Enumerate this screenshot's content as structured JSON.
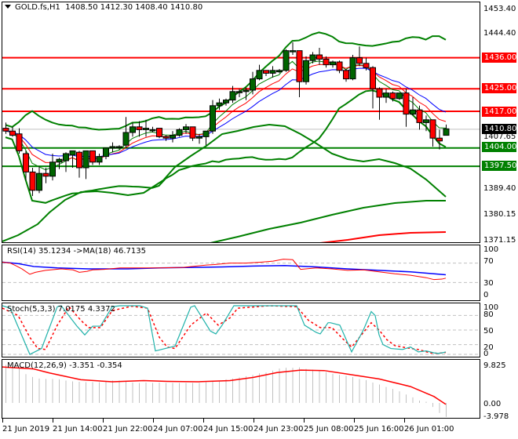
{
  "header": {
    "symbol": "GOLD.fs,H1",
    "ohlc": "1408.50 1412.30 1408.40 1410.80",
    "menu_icon": "triangle-down-icon"
  },
  "colors": {
    "bull": "#006400",
    "bear": "#ff0000",
    "bollinger": "#008000",
    "ma_fast": "#008000",
    "ma_mid": "#ff0000",
    "ma_slow": "#0000ff",
    "resistance": "#ff0000",
    "support": "#008000",
    "current_price_tag": "#000000",
    "stoch_main": "#20b2aa",
    "stoch_signal": "#ff0000",
    "rsi": "#ff0000",
    "rsi_ma": "#0000ff",
    "macd_hist": "#c0c0c0",
    "macd_signal": "#ff0000"
  },
  "price_axis": {
    "ticks": [
      "1453.40",
      "1444.40",
      "1407.65",
      "1389.40",
      "1380.15",
      "1371.15"
    ],
    "tags": [
      {
        "value": "1436.00",
        "color": "#ff0000"
      },
      {
        "value": "1425.00",
        "color": "#ff0000"
      },
      {
        "value": "1417.00",
        "color": "#ff0000"
      },
      {
        "value": "1410.80",
        "color": "#000000"
      },
      {
        "value": "1404.00",
        "color": "#008000"
      },
      {
        "value": "1397.50",
        "color": "#008000"
      }
    ]
  },
  "time_axis": {
    "ticks": [
      "21 Jun 2019",
      "21 Jun 14:00",
      "21 Jun 22:00",
      "24 Jun 07:00",
      "24 Jun 15:00",
      "24 Jun 23:00",
      "25 Jun 08:00",
      "25 Jun 16:00",
      "26 Jun 01:00"
    ]
  },
  "rsi": {
    "label": "RSI(14) 35.1234  ->MA(18) 46.7135",
    "ticks": [
      "100",
      "70",
      "30",
      "0"
    ]
  },
  "stoch": {
    "label": "Stoch(5,3,3) 7.0175 4.3372",
    "ticks": [
      "100",
      "80",
      "50",
      "20",
      "0"
    ]
  },
  "macd": {
    "label": "MACD(12,26,9) -3.351 -0.354",
    "ticks": [
      "9.825",
      "0.00",
      "-3.978"
    ]
  },
  "chart_data": {
    "type": "candlestick",
    "title": "GOLD.fs,H1",
    "ohlc_last": {
      "open": 1408.5,
      "high": 1412.3,
      "low": 1408.4,
      "close": 1410.8
    },
    "ylim": [
      1371.15,
      1453.4
    ],
    "horizontal_levels": {
      "resistance": [
        1436.0,
        1425.0,
        1417.0
      ],
      "support": [
        1404.0,
        1397.5
      ],
      "current": 1410.8
    },
    "candles": [
      {
        "o": 1411.0,
        "h": 1413.0,
        "l": 1409.0,
        "c": 1410.0
      },
      {
        "o": 1410.0,
        "h": 1411.5,
        "l": 1408.0,
        "c": 1408.5
      },
      {
        "o": 1409.0,
        "h": 1411.0,
        "l": 1402.0,
        "c": 1403.0
      },
      {
        "o": 1402.0,
        "h": 1403.0,
        "l": 1392.5,
        "c": 1395.5
      },
      {
        "o": 1395.5,
        "h": 1397.0,
        "l": 1387.0,
        "c": 1389.0
      },
      {
        "o": 1389.0,
        "h": 1397.5,
        "l": 1388.0,
        "c": 1395.0
      },
      {
        "o": 1395.0,
        "h": 1397.0,
        "l": 1391.5,
        "c": 1394.0
      },
      {
        "o": 1394.0,
        "h": 1402.0,
        "l": 1392.5,
        "c": 1399.0
      },
      {
        "o": 1399.0,
        "h": 1400.5,
        "l": 1396.5,
        "c": 1400.0
      },
      {
        "o": 1399.5,
        "h": 1402.5,
        "l": 1395.5,
        "c": 1402.0
      },
      {
        "o": 1401.5,
        "h": 1403.0,
        "l": 1397.0,
        "c": 1403.0
      },
      {
        "o": 1402.5,
        "h": 1403.0,
        "l": 1393.5,
        "c": 1397.0
      },
      {
        "o": 1397.0,
        "h": 1403.0,
        "l": 1393.0,
        "c": 1403.0
      },
      {
        "o": 1403.0,
        "h": 1403.0,
        "l": 1398.0,
        "c": 1399.0
      },
      {
        "o": 1399.0,
        "h": 1402.0,
        "l": 1398.0,
        "c": 1401.0
      },
      {
        "o": 1401.0,
        "h": 1404.0,
        "l": 1400.0,
        "c": 1404.0
      },
      {
        "o": 1404.0,
        "h": 1406.0,
        "l": 1402.5,
        "c": 1404.5
      },
      {
        "o": 1404.5,
        "h": 1405.0,
        "l": 1403.5,
        "c": 1404.5
      },
      {
        "o": 1405.0,
        "h": 1415.0,
        "l": 1404.0,
        "c": 1409.5
      },
      {
        "o": 1409.5,
        "h": 1413.0,
        "l": 1408.0,
        "c": 1411.5
      },
      {
        "o": 1411.5,
        "h": 1413.5,
        "l": 1408.0,
        "c": 1410.5
      },
      {
        "o": 1410.5,
        "h": 1414.0,
        "l": 1408.0,
        "c": 1411.0
      },
      {
        "o": 1410.5,
        "h": 1411.5,
        "l": 1409.5,
        "c": 1410.5
      },
      {
        "o": 1411.0,
        "h": 1411.0,
        "l": 1407.5,
        "c": 1408.0
      },
      {
        "o": 1408.0,
        "h": 1408.5,
        "l": 1406.5,
        "c": 1407.5
      },
      {
        "o": 1407.5,
        "h": 1410.0,
        "l": 1406.0,
        "c": 1408.5
      },
      {
        "o": 1408.5,
        "h": 1411.0,
        "l": 1408.0,
        "c": 1410.5
      },
      {
        "o": 1410.5,
        "h": 1412.5,
        "l": 1409.0,
        "c": 1411.5
      },
      {
        "o": 1411.5,
        "h": 1411.5,
        "l": 1406.5,
        "c": 1407.5
      },
      {
        "o": 1407.5,
        "h": 1409.0,
        "l": 1405.5,
        "c": 1408.0
      },
      {
        "o": 1408.0,
        "h": 1410.0,
        "l": 1405.0,
        "c": 1410.0
      },
      {
        "o": 1410.0,
        "h": 1421.0,
        "l": 1409.0,
        "c": 1419.0
      },
      {
        "o": 1419.0,
        "h": 1421.5,
        "l": 1417.5,
        "c": 1420.0
      },
      {
        "o": 1420.0,
        "h": 1421.5,
        "l": 1419.0,
        "c": 1421.0
      },
      {
        "o": 1421.0,
        "h": 1426.0,
        "l": 1420.0,
        "c": 1424.0
      },
      {
        "o": 1424.0,
        "h": 1425.0,
        "l": 1422.0,
        "c": 1424.0
      },
      {
        "o": 1424.0,
        "h": 1425.5,
        "l": 1421.0,
        "c": 1424.5
      },
      {
        "o": 1424.5,
        "h": 1431.0,
        "l": 1423.0,
        "c": 1428.5
      },
      {
        "o": 1428.5,
        "h": 1433.5,
        "l": 1428.0,
        "c": 1431.5
      },
      {
        "o": 1431.5,
        "h": 1431.5,
        "l": 1429.5,
        "c": 1430.5
      },
      {
        "o": 1430.5,
        "h": 1433.0,
        "l": 1429.0,
        "c": 1431.5
      },
      {
        "o": 1431.0,
        "h": 1432.0,
        "l": 1430.5,
        "c": 1431.5
      },
      {
        "o": 1431.5,
        "h": 1439.0,
        "l": 1431.0,
        "c": 1438.5
      },
      {
        "o": 1438.5,
        "h": 1441.5,
        "l": 1437.0,
        "c": 1438.5
      },
      {
        "o": 1438.5,
        "h": 1438.5,
        "l": 1422.0,
        "c": 1427.5
      },
      {
        "o": 1427.5,
        "h": 1436.5,
        "l": 1426.5,
        "c": 1435.0
      },
      {
        "o": 1435.0,
        "h": 1438.0,
        "l": 1434.0,
        "c": 1437.0
      },
      {
        "o": 1437.0,
        "h": 1439.5,
        "l": 1433.5,
        "c": 1435.5
      },
      {
        "o": 1435.5,
        "h": 1436.5,
        "l": 1432.5,
        "c": 1433.5
      },
      {
        "o": 1433.5,
        "h": 1435.0,
        "l": 1432.5,
        "c": 1434.5
      },
      {
        "o": 1434.5,
        "h": 1435.0,
        "l": 1430.5,
        "c": 1431.5
      },
      {
        "o": 1431.5,
        "h": 1432.0,
        "l": 1427.5,
        "c": 1428.5
      },
      {
        "o": 1428.5,
        "h": 1437.0,
        "l": 1428.0,
        "c": 1436.0
      },
      {
        "o": 1436.0,
        "h": 1440.0,
        "l": 1433.0,
        "c": 1434.0
      },
      {
        "o": 1434.0,
        "h": 1436.0,
        "l": 1431.5,
        "c": 1432.5
      },
      {
        "o": 1432.5,
        "h": 1433.0,
        "l": 1418.0,
        "c": 1425.0
      },
      {
        "o": 1425.0,
        "h": 1425.5,
        "l": 1414.0,
        "c": 1422.0
      },
      {
        "o": 1422.0,
        "h": 1425.0,
        "l": 1420.0,
        "c": 1423.5
      },
      {
        "o": 1423.5,
        "h": 1424.0,
        "l": 1420.5,
        "c": 1421.5
      },
      {
        "o": 1421.5,
        "h": 1423.0,
        "l": 1421.0,
        "c": 1423.5
      },
      {
        "o": 1423.5,
        "h": 1425.0,
        "l": 1411.5,
        "c": 1416.0
      },
      {
        "o": 1416.0,
        "h": 1422.0,
        "l": 1415.5,
        "c": 1417.5
      },
      {
        "o": 1417.5,
        "h": 1419.0,
        "l": 1410.5,
        "c": 1413.0
      },
      {
        "o": 1413.0,
        "h": 1415.5,
        "l": 1410.0,
        "c": 1414.0
      },
      {
        "o": 1414.0,
        "h": 1414.0,
        "l": 1404.5,
        "c": 1407.5
      },
      {
        "o": 1407.5,
        "h": 1410.5,
        "l": 1403.5,
        "c": 1406.5
      },
      {
        "o": 1408.5,
        "h": 1412.3,
        "l": 1408.4,
        "c": 1410.8
      }
    ]
  }
}
